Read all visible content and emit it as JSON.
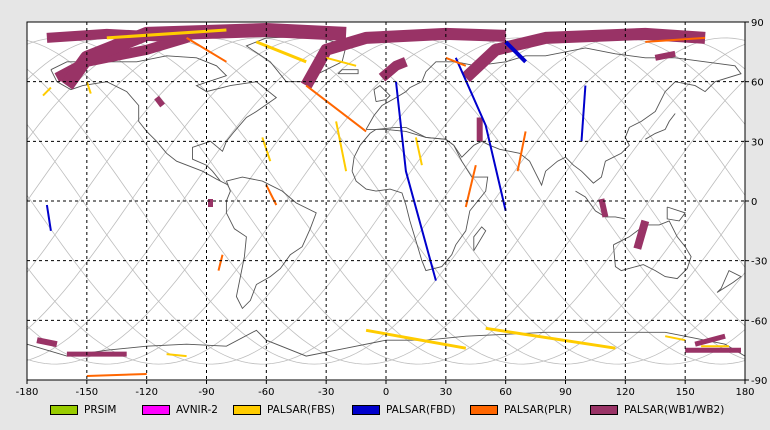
{
  "map": {
    "lon_range": [
      -180,
      180
    ],
    "lat_range": [
      -90,
      90
    ],
    "grid": "dashed",
    "x_ticks": [
      -180,
      -150,
      -120,
      -90,
      -60,
      -30,
      0,
      30,
      60,
      90,
      120,
      150,
      180
    ],
    "y_ticks": [
      90,
      60,
      30,
      0,
      -30,
      -60,
      -90
    ],
    "x_tick_labels": [
      "-180",
      "-150",
      "-120",
      "-90",
      "-60",
      "-30",
      "0",
      "30",
      "60",
      "90",
      "120",
      "150",
      "180"
    ],
    "y_tick_labels": [
      "90",
      "60",
      "30",
      "0",
      "-30",
      "-60",
      "-90"
    ],
    "colors": {
      "orbit": "#bdbdbd",
      "coast": "#555555",
      "ocean": "#ffffff",
      "border": "#000000"
    }
  },
  "legend": [
    {
      "label": "PRSIM",
      "color": "#99cc00"
    },
    {
      "label": "AVNIR-2",
      "color": "#ff00ff"
    },
    {
      "label": "PALSAR(FBS)",
      "color": "#ffcc00"
    },
    {
      "label": "PALSAR(FBD)",
      "color": "#0000cc"
    },
    {
      "label": "PALSAR(PLR)",
      "color": "#ff6600"
    },
    {
      "label": "PALSAR(WB1/WB2)",
      "color": "#993366"
    }
  ],
  "swaths": [
    {
      "mode": "PALSAR(WB1/WB2)",
      "pts": [
        [
          -170,
          82
        ],
        [
          -140,
          84
        ],
        [
          -100,
          82
        ],
        [
          -120,
          76
        ],
        [
          -150,
          70
        ],
        [
          -165,
          62
        ]
      ],
      "w": 10
    },
    {
      "mode": "PALSAR(WB1/WB2)",
      "pts": [
        [
          -160,
          58
        ],
        [
          -150,
          72
        ],
        [
          -120,
          84
        ],
        [
          -60,
          86
        ],
        [
          -20,
          84
        ]
      ],
      "w": 14
    },
    {
      "mode": "PALSAR(WB1/WB2)",
      "pts": [
        [
          -40,
          58
        ],
        [
          -30,
          76
        ],
        [
          -10,
          82
        ],
        [
          30,
          84
        ],
        [
          60,
          83
        ]
      ],
      "w": 12
    },
    {
      "mode": "PALSAR(WB1/WB2)",
      "pts": [
        [
          40,
          62
        ],
        [
          55,
          76
        ],
        [
          80,
          82
        ],
        [
          130,
          84
        ],
        [
          160,
          82
        ]
      ],
      "w": 12
    },
    {
      "mode": "PALSAR(WB1/WB2)",
      "pts": [
        [
          -2,
          62
        ],
        [
          5,
          68
        ],
        [
          10,
          70
        ]
      ],
      "w": 10
    },
    {
      "mode": "PALSAR(WB1/WB2)",
      "pts": [
        [
          135,
          72
        ],
        [
          145,
          74
        ]
      ],
      "w": 6
    },
    {
      "mode": "PALSAR(WB1/WB2)",
      "pts": [
        [
          -115,
          52
        ],
        [
          -112,
          48
        ]
      ],
      "w": 6
    },
    {
      "mode": "PALSAR(WB1/WB2)",
      "pts": [
        [
          47,
          42
        ],
        [
          47,
          30
        ]
      ],
      "w": 6
    },
    {
      "mode": "PALSAR(WB1/WB2)",
      "pts": [
        [
          -88,
          1
        ],
        [
          -88,
          -3
        ]
      ],
      "w": 5
    },
    {
      "mode": "PALSAR(WB1/WB2)",
      "pts": [
        [
          108,
          1
        ],
        [
          110,
          -8
        ]
      ],
      "w": 6
    },
    {
      "mode": "PALSAR(WB1/WB2)",
      "pts": [
        [
          130,
          -10
        ],
        [
          126,
          -24
        ]
      ],
      "w": 8
    },
    {
      "mode": "PALSAR(WB1/WB2)",
      "pts": [
        [
          -175,
          -70
        ],
        [
          -165,
          -72
        ]
      ],
      "w": 6
    },
    {
      "mode": "PALSAR(WB1/WB2)",
      "pts": [
        [
          -160,
          -77
        ],
        [
          -130,
          -77
        ]
      ],
      "w": 5
    },
    {
      "mode": "PALSAR(WB1/WB2)",
      "pts": [
        [
          155,
          -72
        ],
        [
          170,
          -68
        ]
      ],
      "w": 5
    },
    {
      "mode": "PALSAR(WB1/WB2)",
      "pts": [
        [
          150,
          -75
        ],
        [
          178,
          -75
        ]
      ],
      "w": 5
    },
    {
      "mode": "PALSAR(FBS)",
      "pts": [
        [
          -140,
          82
        ],
        [
          -80,
          86
        ]
      ],
      "w": 3
    },
    {
      "mode": "PALSAR(FBS)",
      "pts": [
        [
          -65,
          80
        ],
        [
          -40,
          70
        ]
      ],
      "w": 3
    },
    {
      "mode": "PALSAR(FBS)",
      "pts": [
        [
          -30,
          72
        ],
        [
          -15,
          68
        ]
      ],
      "w": 2
    },
    {
      "mode": "PALSAR(FBS)",
      "pts": [
        [
          -172,
          53
        ],
        [
          -168,
          57
        ]
      ],
      "w": 2
    },
    {
      "mode": "PALSAR(FBS)",
      "pts": [
        [
          -150,
          60
        ],
        [
          -148,
          54
        ]
      ],
      "w": 2
    },
    {
      "mode": "PALSAR(FBS)",
      "pts": [
        [
          -25,
          40
        ],
        [
          -20,
          15
        ]
      ],
      "w": 2
    },
    {
      "mode": "PALSAR(FBS)",
      "pts": [
        [
          15,
          32
        ],
        [
          18,
          18
        ]
      ],
      "w": 2
    },
    {
      "mode": "PALSAR(FBS)",
      "pts": [
        [
          -62,
          32
        ],
        [
          -58,
          20
        ]
      ],
      "w": 2
    },
    {
      "mode": "PALSAR(FBS)",
      "pts": [
        [
          -10,
          -65
        ],
        [
          40,
          -74
        ]
      ],
      "w": 3
    },
    {
      "mode": "PALSAR(FBS)",
      "pts": [
        [
          50,
          -64
        ],
        [
          115,
          -74
        ]
      ],
      "w": 3
    },
    {
      "mode": "PALSAR(FBS)",
      "pts": [
        [
          -110,
          -77
        ],
        [
          -100,
          -78
        ]
      ],
      "w": 2
    },
    {
      "mode": "PALSAR(FBS)",
      "pts": [
        [
          140,
          -68
        ],
        [
          150,
          -70
        ]
      ],
      "w": 2
    },
    {
      "mode": "PALSAR(FBS)",
      "pts": [
        [
          158,
          -73
        ],
        [
          172,
          -73
        ]
      ],
      "w": 2
    },
    {
      "mode": "PALSAR(FBD)",
      "pts": [
        [
          35,
          72
        ],
        [
          50,
          38
        ],
        [
          60,
          -5
        ]
      ],
      "w": 2
    },
    {
      "mode": "PALSAR(FBD)",
      "pts": [
        [
          5,
          60
        ],
        [
          10,
          15
        ],
        [
          25,
          -40
        ]
      ],
      "w": 2
    },
    {
      "mode": "PALSAR(FBD)",
      "pts": [
        [
          60,
          80
        ],
        [
          70,
          70
        ]
      ],
      "w": 4
    },
    {
      "mode": "PALSAR(FBD)",
      "pts": [
        [
          -170,
          -2
        ],
        [
          -168,
          -15
        ]
      ],
      "w": 2
    },
    {
      "mode": "PALSAR(FBD)",
      "pts": [
        [
          100,
          58
        ],
        [
          98,
          30
        ]
      ],
      "w": 2
    },
    {
      "mode": "PALSAR(PLR)",
      "pts": [
        [
          -150,
          -88
        ],
        [
          -120,
          -87
        ]
      ],
      "w": 2
    },
    {
      "mode": "PALSAR(PLR)",
      "pts": [
        [
          -100,
          82
        ],
        [
          -80,
          70
        ]
      ],
      "w": 2
    },
    {
      "mode": "PALSAR(PLR)",
      "pts": [
        [
          -40,
          58
        ],
        [
          -10,
          35
        ]
      ],
      "w": 2
    },
    {
      "mode": "PALSAR(PLR)",
      "pts": [
        [
          -60,
          8
        ],
        [
          -55,
          -2
        ]
      ],
      "w": 2
    },
    {
      "mode": "PALSAR(PLR)",
      "pts": [
        [
          45,
          18
        ],
        [
          40,
          -3
        ]
      ],
      "w": 2
    },
    {
      "mode": "PALSAR(PLR)",
      "pts": [
        [
          70,
          35
        ],
        [
          66,
          15
        ]
      ],
      "w": 2
    },
    {
      "mode": "PALSAR(PLR)",
      "pts": [
        [
          -82,
          -27
        ],
        [
          -84,
          -35
        ]
      ],
      "w": 2
    },
    {
      "mode": "PALSAR(PLR)",
      "pts": [
        [
          30,
          72
        ],
        [
          40,
          68
        ]
      ],
      "w": 2
    },
    {
      "mode": "PALSAR(PLR)",
      "pts": [
        [
          130,
          80
        ],
        [
          160,
          82
        ]
      ],
      "w": 2
    }
  ]
}
